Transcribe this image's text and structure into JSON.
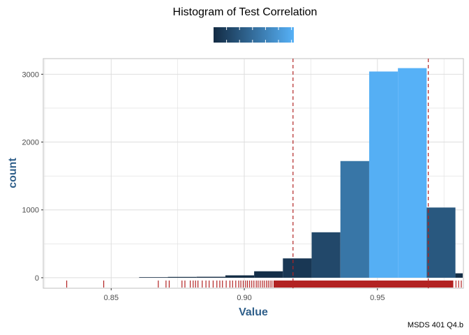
{
  "chart_data": {
    "type": "bar",
    "title": "Histogram of Test Correlation",
    "xlabel": "Value",
    "ylabel": "count",
    "caption": "MSDS 401 Q4.b",
    "xlim": [
      0.8245,
      0.9823
    ],
    "ylim": [
      -155,
      3230
    ],
    "x_ticks": [
      0.85,
      0.9,
      0.95
    ],
    "x_tick_labels": [
      "0.85",
      "0.90",
      "0.95"
    ],
    "y_ticks": [
      0,
      1000,
      2000,
      3000
    ],
    "y_tick_labels": [
      "0",
      "1000",
      "2000",
      "3000"
    ],
    "grid": true,
    "legend": "top (colour bar for count)",
    "colors": {
      "low": "#132B43",
      "high": "#56B1F7",
      "reference_line": "#B22222",
      "rug": "#B22222",
      "axis_title": "#2F5F8A",
      "grid": "#dedede"
    },
    "bins": [
      {
        "x0": 0.8605,
        "x1": 0.8713,
        "count": 8
      },
      {
        "x0": 0.8713,
        "x1": 0.8821,
        "count": 12
      },
      {
        "x0": 0.8821,
        "x1": 0.8929,
        "count": 14
      },
      {
        "x0": 0.8929,
        "x1": 0.9037,
        "count": 35
      },
      {
        "x0": 0.9037,
        "x1": 0.9145,
        "count": 95
      },
      {
        "x0": 0.9145,
        "x1": 0.9253,
        "count": 285
      },
      {
        "x0": 0.9253,
        "x1": 0.9361,
        "count": 670
      },
      {
        "x0": 0.9361,
        "x1": 0.9469,
        "count": 1720
      },
      {
        "x0": 0.9469,
        "x1": 0.9577,
        "count": 3040
      },
      {
        "x0": 0.9577,
        "x1": 0.9685,
        "count": 3090
      },
      {
        "x0": 0.9685,
        "x1": 0.9793,
        "count": 1035
      },
      {
        "x0": 0.9793,
        "x1": 0.9901,
        "count": 65
      }
    ],
    "reference_lines": [
      0.9183,
      0.9691
    ],
    "rug_dense_range": [
      0.911,
      0.9785
    ],
    "rug_points": [
      0.8333,
      0.8472,
      0.8677,
      0.8706,
      0.8718,
      0.8766,
      0.8777,
      0.8797,
      0.8808,
      0.8817,
      0.8826,
      0.8842,
      0.8856,
      0.8868,
      0.8883,
      0.8897,
      0.8908,
      0.8918,
      0.8932,
      0.8946,
      0.8956,
      0.8968,
      0.8979,
      0.8987,
      0.8996,
      0.9005,
      0.9012,
      0.902,
      0.9028,
      0.9036,
      0.9045,
      0.9052,
      0.906,
      0.9068,
      0.9075,
      0.9083,
      0.909,
      0.9097,
      0.9104,
      0.9795,
      0.9805,
      0.9815
    ]
  }
}
